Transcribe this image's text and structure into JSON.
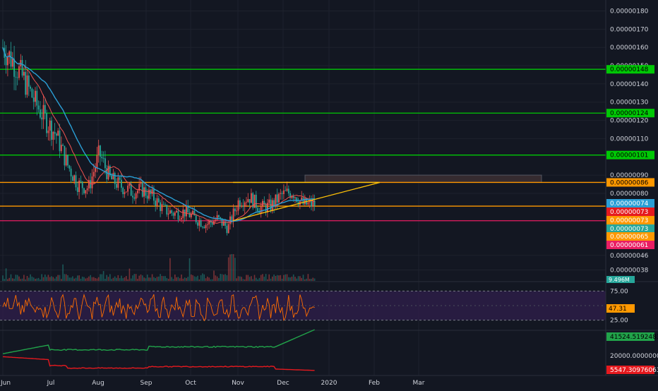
{
  "colors": {
    "background": "#131722",
    "grid": "#1e222d",
    "text": "#d1d4dc",
    "candle_up": "#ef5350",
    "candle_down": "#26a69a",
    "ma_fast": "#ef5350",
    "ma_slow": "#2a9fd6",
    "green_level": "#00c805",
    "orange_level": "#ff9800",
    "red_level": "#e91e63",
    "triangle": "#ffc107",
    "rsi_line": "#ff6d00",
    "rsi_band": "#2e1e4a",
    "line_green": "#21a34a",
    "line_red": "#e5191e"
  },
  "chart_data": [
    {
      "type": "line",
      "panel": "price",
      "subtype": "candlestick",
      "ylim": [
        3.2e-07,
        1.86e-06
      ],
      "x_tick_labels": [
        "Jun",
        "Jul",
        "Aug",
        "Sep",
        "Oct",
        "Nov",
        "Dec",
        "2020",
        "Feb",
        "Mar"
      ],
      "y_tick_labels": [
        "0.00000180",
        "0.00000170",
        "0.00000160",
        "0.00000150",
        "0.00000140",
        "0.00000130",
        "0.00000120",
        "0.00000110",
        "0.00000090",
        "0.00000080",
        "0.00000046",
        "0.00000038"
      ],
      "y_tick_values": [
        1.8e-06,
        1.7e-06,
        1.6e-06,
        1.5e-06,
        1.4e-06,
        1.3e-06,
        1.2e-06,
        1.1e-06,
        9e-07,
        8e-07,
        4.6e-07,
        3.8e-07
      ],
      "series": [
        {
          "type": "line",
          "x": [
            "2019-06-01",
            "2019-06-08",
            "2019-06-15",
            "2019-06-22",
            "2019-06-29",
            "2019-07-06",
            "2019-07-13",
            "2019-07-20",
            "2019-07-27",
            "2019-08-03",
            "2019-08-10",
            "2019-08-17",
            "2019-08-24",
            "2019-08-31",
            "2019-09-07",
            "2019-09-14",
            "2019-09-21",
            "2019-09-28",
            "2019-10-05",
            "2019-10-12",
            "2019-10-19",
            "2019-10-26",
            "2019-11-02",
            "2019-11-09",
            "2019-11-16",
            "2019-11-23",
            "2019-11-30",
            "2019-12-07",
            "2019-12-14"
          ],
          "y": [
            1.6e-06,
            1.52e-06,
            1.42e-06,
            1.3e-06,
            1.2e-06,
            1.12e-06,
            9.6e-07,
            8.5e-07,
            8.3e-07,
            1.02e-06,
            8.8e-07,
            8.4e-07,
            8.1e-07,
            8.2e-07,
            7.8e-07,
            7.1e-07,
            6.9e-07,
            7e-07,
            6.6e-07,
            6.3e-07,
            6.6e-07,
            6.1e-07,
            7.6e-07,
            7.8e-07,
            7.2e-07,
            7.3e-07,
            7.9e-07,
            8.1e-07,
            7.4e-07
          ]
        }
      ],
      "horizontal_levels": [
        {
          "label": "0.00000148",
          "value": 1.48e-06,
          "color": "#00c805"
        },
        {
          "label": "0.00000124",
          "value": 1.24e-06,
          "color": "#00c805"
        },
        {
          "label": "0.00000101",
          "value": 1.01e-06,
          "color": "#00c805"
        },
        {
          "label": "0.00000086",
          "value": 8.6e-07,
          "color": "#ff9800"
        },
        {
          "label": "0.00000073",
          "value": 7.3e-07,
          "color": "#ff9800"
        },
        {
          "label": "0.00000065",
          "value": 6.5e-07,
          "color": "#e91e63"
        }
      ],
      "price_labels": [
        {
          "label": "0.00000074",
          "value": 7.4e-07,
          "color": "#2a9fd6"
        },
        {
          "label": "0.00000073",
          "value": 7.3e-07,
          "color": "#e5191e"
        },
        {
          "label": "0.00000073",
          "value": 7.3e-07,
          "color": "#ff9800"
        },
        {
          "label": "0.00000073",
          "value": 7.3e-07,
          "color": "#26a69a"
        },
        {
          "label": "0.00000065",
          "value": 6.5e-07,
          "color": "#ff9800"
        },
        {
          "label": "0.00000061",
          "value": 6.1e-07,
          "color": "#e91e63"
        }
      ],
      "volume_label": "9.496M"
    },
    {
      "type": "line",
      "panel": "rsi",
      "ylim": [
        10,
        90
      ],
      "y_tick_labels": [
        "75.00",
        "25.00"
      ],
      "y_tick_values": [
        75,
        25
      ],
      "current_value_label": "47.31",
      "current_value": 47.31
    },
    {
      "type": "line",
      "panel": "indicator",
      "ylim": [
        0,
        45000
      ],
      "y_tick_labels": [
        "20000.00000000"
      ],
      "y_tick_values": [
        20000
      ],
      "series": [
        {
          "value_label": "41524.51924833",
          "last_value": 41524.51924833,
          "color": "#21a34a"
        },
        {
          "value_label": "5547.30976063",
          "last_value": 5547.30976063,
          "color": "#e5191e"
        }
      ]
    }
  ]
}
